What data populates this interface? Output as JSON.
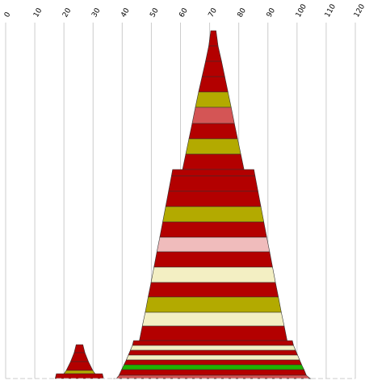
{
  "chart_data": {
    "type": "area",
    "title": "",
    "xlabel": "",
    "ylabel": "",
    "x_axis_position": "top",
    "x_tick_labels": [
      "0",
      "10",
      "20",
      "30",
      "40",
      "50",
      "60",
      "70",
      "80",
      "90",
      "100",
      "110",
      "120"
    ],
    "x_tick_values": [
      0,
      10,
      20,
      30,
      40,
      50,
      60,
      70,
      80,
      90,
      100,
      110,
      120
    ],
    "xlim": [
      0,
      120
    ],
    "grid": "vertical lines",
    "legend": "none",
    "colors": {
      "red": "#b30000",
      "olive": "#b3aa00",
      "salmon": "#d45555",
      "pink": "#f0bcbc",
      "cream": "#f3efc3",
      "green": "#1fb300",
      "axis": "#cccccc",
      "outline": "#333333"
    },
    "shapes": [
      {
        "name": "small-peak",
        "bands": [
          {
            "x_left": 23.5,
            "x_right": 27.2,
            "color": "red"
          },
          {
            "x_left": 22.3,
            "x_right": 28.4,
            "color": "red"
          },
          {
            "x_left": 20.8,
            "x_right": 29.9,
            "color": "red"
          },
          {
            "x_left": 20.0,
            "x_right": 30.7,
            "color": "olive"
          },
          {
            "x_left": 17.0,
            "x_right": 33.6,
            "color": "red"
          }
        ]
      },
      {
        "name": "main-stack",
        "bands": [
          {
            "x_left": 69.7,
            "x_right": 72.9,
            "color": "red"
          },
          {
            "x_left": 68.6,
            "x_right": 74.1,
            "color": "red"
          },
          {
            "x_left": 67.4,
            "x_right": 75.2,
            "color": "red"
          },
          {
            "x_left": 66.2,
            "x_right": 76.3,
            "color": "red"
          },
          {
            "x_left": 65.1,
            "x_right": 77.4,
            "color": "olive"
          },
          {
            "x_left": 64.0,
            "x_right": 78.5,
            "color": "salmon"
          },
          {
            "x_left": 62.9,
            "x_right": 79.6,
            "color": "red"
          },
          {
            "x_left": 61.8,
            "x_right": 80.7,
            "color": "olive"
          },
          {
            "x_left": 60.7,
            "x_right": 81.8,
            "color": "red"
          },
          {
            "x_left": 56.9,
            "x_right": 85.6,
            "color": "red"
          },
          {
            "x_left": 55.9,
            "x_right": 86.6,
            "color": "red"
          },
          {
            "x_left": 54.9,
            "x_right": 87.6,
            "color": "red"
          },
          {
            "x_left": 53.9,
            "x_right": 88.6,
            "color": "olive"
          },
          {
            "x_left": 52.9,
            "x_right": 89.6,
            "color": "red"
          },
          {
            "x_left": 51.9,
            "x_right": 90.6,
            "color": "pink"
          },
          {
            "x_left": 50.9,
            "x_right": 91.6,
            "color": "red"
          },
          {
            "x_left": 49.9,
            "x_right": 92.6,
            "color": "cream"
          },
          {
            "x_left": 48.9,
            "x_right": 93.6,
            "color": "red"
          },
          {
            "x_left": 47.9,
            "x_right": 94.6,
            "color": "olive"
          },
          {
            "x_left": 46.9,
            "x_right": 95.6,
            "color": "cream"
          },
          {
            "x_left": 45.9,
            "x_right": 96.6,
            "color": "red"
          },
          {
            "x_left": 43.5,
            "x_right": 98.8,
            "color": "red"
          },
          {
            "x_left": 42.8,
            "x_right": 99.5,
            "color": "cream"
          },
          {
            "x_left": 42.1,
            "x_right": 100.2,
            "color": "red"
          },
          {
            "x_left": 41.4,
            "x_right": 100.9,
            "color": "cream"
          },
          {
            "x_left": 40.6,
            "x_right": 101.6,
            "color": "red"
          },
          {
            "x_left": 39.8,
            "x_right": 102.4,
            "color": "green"
          },
          {
            "x_left": 38.9,
            "x_right": 103.2,
            "color": "red"
          },
          {
            "x_left": 38.0,
            "x_right": 104.5,
            "color": "salmon"
          },
          {
            "x_left": 37.0,
            "x_right": 106.0,
            "color": "red"
          }
        ]
      }
    ]
  }
}
